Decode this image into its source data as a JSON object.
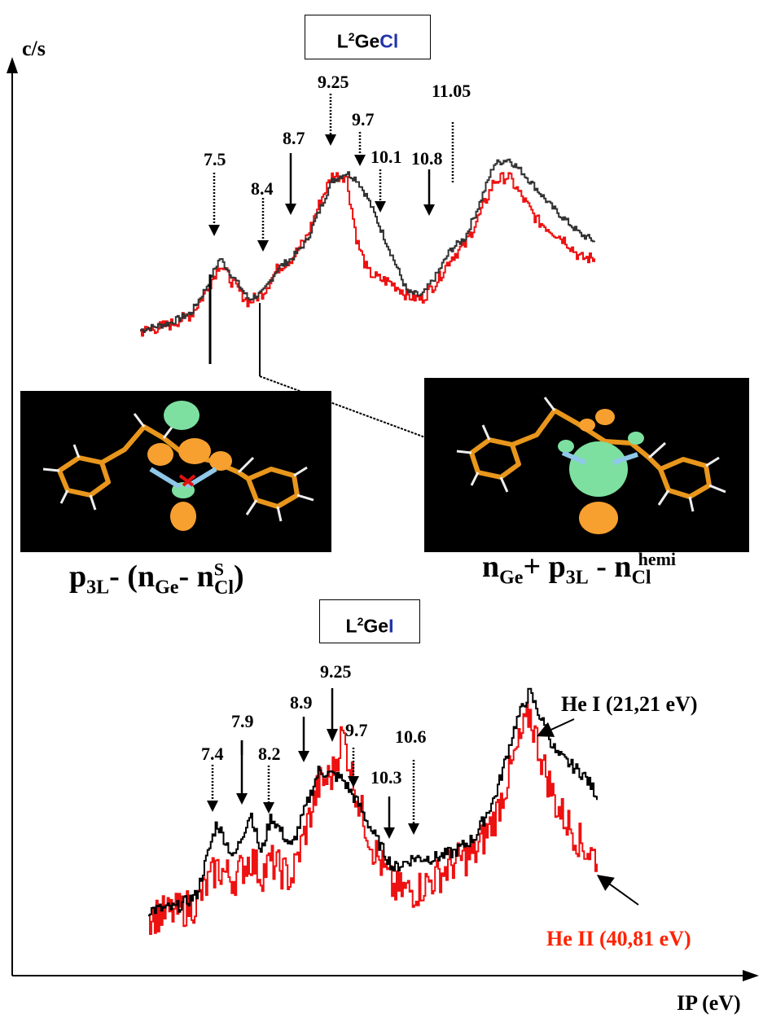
{
  "axes": {
    "y_label": "c/s",
    "x_label": "IP (eV)"
  },
  "colors": {
    "he1": "#333333",
    "he1_bottom": "#000000",
    "he2": "#ee1111",
    "legend_he2": "#ff2200",
    "cl_blue": "#2233aa",
    "i_blue": "#2233aa",
    "orbital_green": "#7de0a0",
    "orbital_orange": "#f7a030",
    "carbon_orange": "#e8961c"
  },
  "top_panel": {
    "title_prefix": "L",
    "title_sup": "2",
    "title_ge": "Ge",
    "title_halogen": "Cl",
    "orbital_label_left": {
      "p": "p",
      "p_sub": "3L",
      "mid": "- (n",
      "ge_sub": "Ge",
      "minus": "- n",
      "s_sup": "S",
      "cl_sub": "Cl",
      "close": ")"
    },
    "orbital_label_right": {
      "n": "n",
      "ge_sub": "Ge",
      "plus": "+ p",
      "p_sub": "3L",
      "minus": " - n",
      "cl_sub": "Cl",
      "hemi_sup": "hemi"
    }
  },
  "bottom_panel": {
    "title_prefix": "L",
    "title_sup": "2",
    "title_ge": "Ge",
    "title_halogen": "I"
  },
  "legend": {
    "he1": "He I  (21,21 eV)",
    "he2": "He II (40,81 eV)"
  },
  "chart_data": [
    {
      "type": "line",
      "title": "L2GeCl",
      "ylabel": "c/s",
      "xlabel": "IP (eV)",
      "annotations": [
        "7.5",
        "8.4",
        "8.7",
        "9.25",
        "9.7",
        "10.1",
        "10.8",
        "11.05"
      ],
      "series": [
        {
          "name": "He I (21,21 eV)",
          "x": [
            6.4,
            6.8,
            7.1,
            7.3,
            7.5,
            7.7,
            7.9,
            8.1,
            8.3,
            8.5,
            8.7,
            8.9,
            9.05,
            9.25,
            9.4,
            9.55,
            9.7,
            9.85,
            10.0,
            10.1,
            10.3,
            10.5,
            10.7,
            10.9,
            11.1,
            11.3,
            11.5,
            11.7,
            11.9,
            12.1,
            12.3,
            12.5,
            12.7
          ],
          "y": [
            0.08,
            0.12,
            0.18,
            0.32,
            0.5,
            0.38,
            0.26,
            0.3,
            0.44,
            0.5,
            0.6,
            0.8,
            0.95,
            1.0,
            0.96,
            0.85,
            0.7,
            0.55,
            0.4,
            0.3,
            0.28,
            0.4,
            0.55,
            0.62,
            0.82,
            1.05,
            1.08,
            1.0,
            0.9,
            0.8,
            0.72,
            0.64,
            0.6
          ]
        },
        {
          "name": "He II (40,81 eV)",
          "x": [
            6.4,
            6.8,
            7.1,
            7.3,
            7.5,
            7.7,
            7.9,
            8.1,
            8.3,
            8.5,
            8.7,
            8.9,
            9.05,
            9.25,
            9.4,
            9.55,
            9.7,
            9.85,
            10.0,
            10.1,
            10.3,
            10.5,
            10.7,
            10.9,
            11.1,
            11.3,
            11.5,
            11.7,
            11.9,
            12.1,
            12.3,
            12.5,
            12.7
          ],
          "y": [
            0.07,
            0.11,
            0.17,
            0.3,
            0.47,
            0.34,
            0.24,
            0.3,
            0.44,
            0.5,
            0.62,
            0.84,
            0.98,
            0.98,
            0.6,
            0.42,
            0.38,
            0.36,
            0.32,
            0.28,
            0.26,
            0.36,
            0.5,
            0.58,
            0.75,
            0.95,
            0.98,
            0.85,
            0.72,
            0.66,
            0.6,
            0.5,
            0.5
          ]
        }
      ]
    },
    {
      "type": "line",
      "title": "L2GeI",
      "ylabel": "c/s",
      "xlabel": "IP (eV)",
      "annotations": [
        "7.4",
        "7.9",
        "8.2",
        "8.9",
        "9.25",
        "9.7",
        "10.3",
        "10.6"
      ],
      "series": [
        {
          "name": "He I  (21,21 eV)",
          "x": [
            6.4,
            6.8,
            7.1,
            7.4,
            7.65,
            7.9,
            8.05,
            8.2,
            8.5,
            8.9,
            9.1,
            9.25,
            9.5,
            9.7,
            10.0,
            10.3,
            10.6,
            10.9,
            11.2,
            11.5,
            11.8,
            12.0,
            12.2,
            12.4,
            12.6,
            12.8,
            13.0
          ],
          "y": [
            0.05,
            0.06,
            0.12,
            0.47,
            0.3,
            0.52,
            0.32,
            0.5,
            0.35,
            0.72,
            0.7,
            0.68,
            0.55,
            0.42,
            0.25,
            0.3,
            0.3,
            0.33,
            0.4,
            0.6,
            0.95,
            1.1,
            0.95,
            0.8,
            0.75,
            0.7,
            0.6
          ]
        },
        {
          "name": "He II (40,81 eV)",
          "x": [
            6.4,
            6.8,
            7.1,
            7.4,
            7.65,
            7.9,
            8.05,
            8.2,
            8.5,
            8.9,
            9.1,
            9.25,
            9.5,
            9.7,
            10.0,
            10.3,
            10.6,
            10.9,
            11.2,
            11.5,
            11.8,
            12.0,
            12.2,
            12.4,
            12.6,
            12.8,
            13.0
          ],
          "y": [
            0.02,
            0.04,
            0.08,
            0.25,
            0.2,
            0.3,
            0.22,
            0.28,
            0.2,
            0.65,
            0.7,
            0.9,
            0.55,
            0.35,
            0.15,
            0.14,
            0.2,
            0.28,
            0.32,
            0.5,
            0.8,
            1.0,
            0.75,
            0.55,
            0.45,
            0.35,
            0.3
          ]
        }
      ]
    }
  ]
}
